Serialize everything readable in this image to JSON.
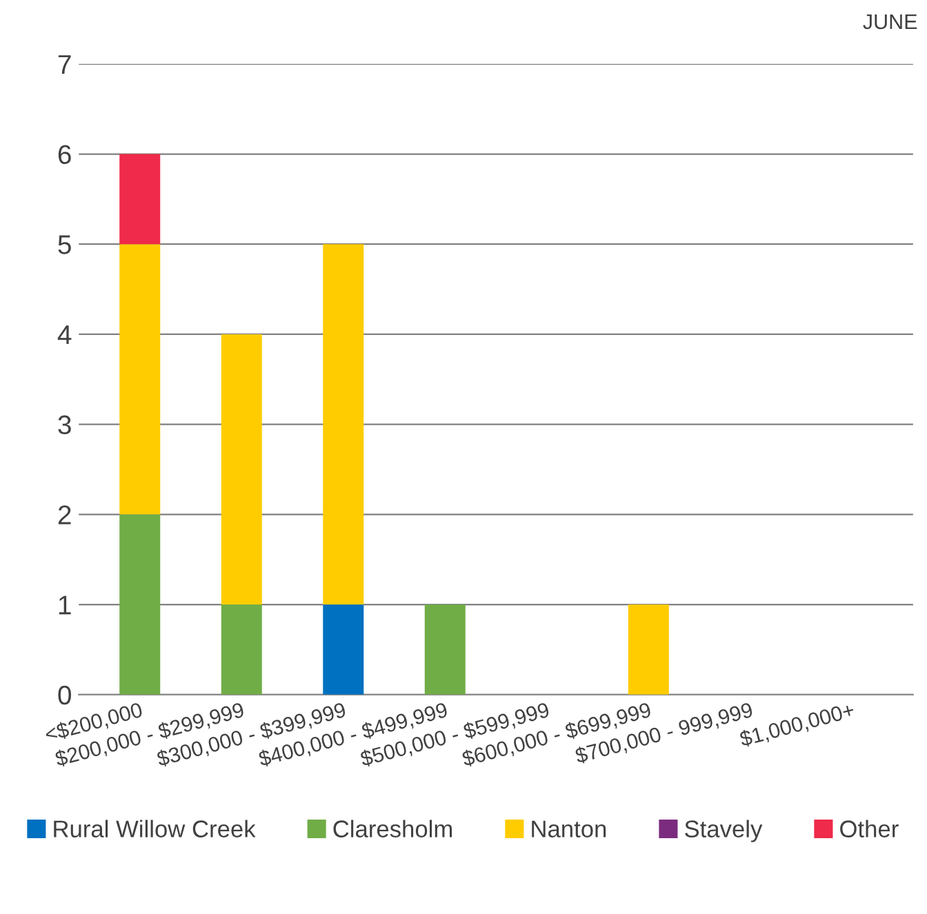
{
  "chart_data": {
    "type": "bar",
    "title": "JUNE",
    "stacked": true,
    "categories": [
      "<$200,000",
      "$200,000 - $299,999",
      "$300,000 - $399,999",
      "$400,000 - $499,999",
      "$500,000 - $599,999",
      "$600,000 - $699,999",
      "$700,000 - 999,999",
      "$1,000,000+"
    ],
    "series": [
      {
        "name": "Rural Willow Creek",
        "color": "#0070c0",
        "values": [
          0,
          0,
          1,
          0,
          0,
          0,
          0,
          0
        ]
      },
      {
        "name": "Claresholm",
        "color": "#70ad47",
        "values": [
          2,
          1,
          0,
          1,
          0,
          0,
          0,
          0
        ]
      },
      {
        "name": "Nanton",
        "color": "#ffcc00",
        "values": [
          3,
          3,
          4,
          0,
          0,
          1,
          0,
          0
        ]
      },
      {
        "name": "Stavely",
        "color": "#7b2c7e",
        "values": [
          0,
          0,
          0,
          0,
          0,
          0,
          0,
          0
        ]
      },
      {
        "name": "Other",
        "color": "#ef2a4a",
        "values": [
          1,
          0,
          0,
          0,
          0,
          0,
          0,
          0
        ]
      }
    ],
    "ylim": [
      0,
      7
    ],
    "yticks": [
      0,
      1,
      2,
      3,
      4,
      5,
      6,
      7
    ],
    "grid": "y",
    "legend": "bottom"
  }
}
